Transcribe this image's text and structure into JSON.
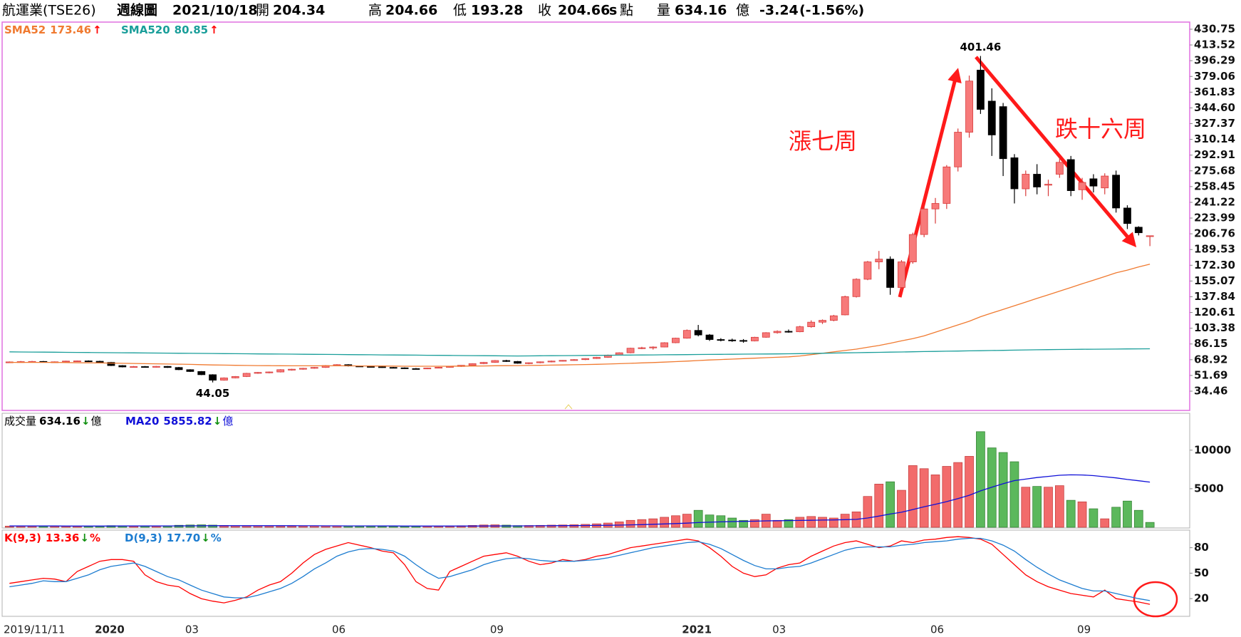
{
  "header": {
    "name": "航運業(TSE26)",
    "period": "週線圖",
    "date": "2021/10/18",
    "open_label": "開",
    "high_label": "高",
    "low_label": "低",
    "close_label": "收",
    "s": "s",
    "point": "點",
    "volume_label": "量",
    "volume_unit": "億",
    "change": "-3.24",
    "change_pct": "(-1.56%)"
  },
  "chart_data": [
    {
      "type": "candlestick",
      "up_color": "#f77a7a",
      "down_color": "#000000",
      "open": [
        66,
        66.5,
        66.8,
        67,
        66.2,
        66.6,
        67.4,
        67.6,
        67.2,
        66,
        62.5,
        61,
        61.4,
        61.2,
        61.6,
        60.4,
        58,
        56,
        52.5,
        46.5,
        49,
        50.5,
        54,
        55,
        55.5,
        58,
        58.5,
        59.5,
        60.5,
        62.5,
        63.5,
        62,
        61.5,
        61.2,
        60.5,
        60,
        59.2,
        59,
        59.8,
        60.6,
        61.5,
        62.8,
        64.6,
        66,
        68,
        67,
        65,
        65.6,
        66.6,
        67.4,
        68.2,
        69,
        70.2,
        71.5,
        74,
        76.5,
        81.5,
        82,
        82.8,
        87.5,
        92.5,
        101,
        96,
        91,
        90.5,
        90,
        89.5,
        93.5,
        98.5,
        100,
        99.5,
        105,
        110,
        112,
        118,
        138,
        157,
        176,
        179,
        148,
        176,
        206,
        234,
        240,
        280,
        318,
        386,
        352,
        346,
        290,
        256,
        272,
        260,
        272,
        288,
        255,
        267,
        257,
        271,
        235,
        214,
        204.34
      ],
      "high": [
        67,
        67.5,
        67.6,
        67.5,
        67,
        67.8,
        68,
        68.2,
        67.8,
        66.5,
        63,
        62,
        62,
        62,
        62,
        61,
        58.5,
        56.5,
        53,
        49.5,
        51,
        54.5,
        55.5,
        56,
        58.5,
        59,
        60,
        61,
        63,
        64,
        64,
        62.5,
        62,
        61.8,
        61,
        60.5,
        59.8,
        60.2,
        61,
        62,
        63,
        65,
        66.5,
        68.5,
        68.8,
        67.5,
        66,
        67,
        68,
        68.5,
        69.5,
        70.5,
        72,
        74.5,
        77,
        82,
        83,
        83.5,
        88,
        93,
        102,
        107,
        97,
        92.5,
        92,
        91.5,
        94,
        99,
        101,
        102,
        106,
        112,
        113,
        118,
        139,
        158,
        177,
        188,
        182,
        178,
        208,
        237,
        246,
        282,
        322,
        380,
        401.46,
        366,
        350,
        294,
        276,
        283,
        266,
        290,
        292,
        268,
        272,
        273,
        276,
        238,
        215,
        204.66
      ],
      "low": [
        65.5,
        65.8,
        66,
        66,
        65.8,
        66.2,
        66.9,
        67,
        65.5,
        62,
        60.5,
        60.2,
        60.6,
        60.4,
        60,
        57.5,
        55.5,
        52,
        44.05,
        46,
        48.5,
        50,
        53.5,
        54,
        55,
        57,
        58,
        59,
        60,
        62,
        61.5,
        61,
        60.5,
        60,
        59.5,
        58.8,
        58.5,
        58.6,
        59.5,
        60.2,
        61,
        62.5,
        64,
        65.5,
        66.5,
        64.5,
        64,
        65,
        66,
        67,
        67.8,
        68.5,
        69.8,
        71,
        73.5,
        76,
        80.5,
        80,
        82.5,
        87,
        92,
        94.5,
        89.5,
        89,
        88.5,
        87.5,
        89,
        93,
        97.5,
        98.5,
        99,
        104,
        108,
        111,
        117.5,
        137,
        156,
        168,
        140,
        144,
        174,
        203,
        218,
        234,
        275,
        312,
        338,
        292,
        270,
        240,
        248,
        250,
        248,
        268,
        248,
        244,
        252,
        250,
        230,
        212,
        205,
        193.28
      ],
      "close": [
        66.5,
        66.8,
        67,
        66.2,
        66.6,
        67.4,
        67.6,
        67.2,
        66,
        62.5,
        61,
        61.4,
        61.2,
        61.6,
        60.4,
        58,
        56,
        52.5,
        46.5,
        49,
        50.5,
        54,
        55,
        55.5,
        58,
        58.5,
        59.5,
        60.5,
        62.5,
        63.5,
        62,
        61.5,
        61.2,
        60.5,
        60,
        59.2,
        59,
        59.8,
        60.6,
        61.5,
        62.8,
        64.6,
        66,
        68,
        67,
        65,
        65.6,
        66.6,
        67.4,
        68.2,
        69,
        70.2,
        71.5,
        74,
        76.5,
        81.5,
        82,
        82.8,
        87.5,
        92.5,
        101,
        96,
        91,
        90.5,
        90,
        89.5,
        93.5,
        98.5,
        100,
        99.5,
        105,
        110,
        112,
        117,
        138,
        157,
        176,
        179,
        148,
        176,
        206,
        234,
        240,
        280,
        318,
        374,
        343,
        315,
        289,
        256,
        272,
        258,
        261,
        285,
        254,
        263,
        259,
        270,
        235,
        218,
        207.9,
        204.66
      ],
      "ylim": [
        13.4,
        438.55
      ],
      "yticks": [
        430.75,
        413.52,
        396.29,
        379.06,
        361.83,
        {
          "value": 344.6,
          "label": "344.60"
        },
        327.37,
        310.14,
        292.91,
        275.68,
        258.45,
        241.22,
        223.99,
        206.76,
        189.53,
        {
          "value": 172.3,
          "label": "172.30"
        },
        155.07,
        137.84,
        120.61,
        103.38,
        86.15,
        68.92,
        51.69,
        34.46
      ],
      "series": [
        {
          "name": "SMA52",
          "color": "#f07a30",
          "arrow": "↑",
          "values": [
            66,
            66,
            66,
            66,
            66,
            65.8,
            65.6,
            65.5,
            65.4,
            65.2,
            65,
            64.8,
            64.6,
            64.4,
            64.2,
            64,
            63.8,
            63.5,
            63.2,
            63,
            62.8,
            62.6,
            62.5,
            62.4,
            62.3,
            62.2,
            62.2,
            62.2,
            62.2,
            62.2,
            62.2,
            62.1,
            62,
            62,
            61.9,
            61.8,
            61.8,
            61.8,
            61.8,
            61.8,
            61.9,
            62,
            62.1,
            62.3,
            62.4,
            62.5,
            62.6,
            62.8,
            63,
            63.2,
            63.4,
            63.6,
            63.9,
            64.2,
            64.6,
            65,
            65.4,
            65.8,
            66.3,
            66.8,
            67.4,
            68,
            68.6,
            69.1,
            69.6,
            70.1,
            70.6,
            71.1,
            71.6,
            72.1,
            73,
            74.5,
            76,
            77.5,
            79,
            80.5,
            82.5,
            84.5,
            87,
            89.5,
            92,
            95,
            99,
            103,
            107,
            111,
            116,
            120,
            124,
            128,
            132,
            136,
            140,
            144,
            148,
            152,
            156,
            160,
            164,
            167,
            170.5,
            173.46
          ]
        },
        {
          "name": "SMA520",
          "color": "#1a9e9a",
          "arrow": "↑",
          "values": [
            77.5,
            77.4,
            77.3,
            77.2,
            77.1,
            77,
            76.9,
            76.8,
            76.7,
            76.6,
            76.5,
            76.4,
            76.3,
            76.2,
            76.1,
            76,
            75.9,
            75.8,
            75.7,
            75.6,
            75.5,
            75.4,
            75.3,
            75.2,
            75.1,
            75,
            74.9,
            74.8,
            74.7,
            74.6,
            74.5,
            74.4,
            74.3,
            74.2,
            74.1,
            74,
            73.9,
            73.8,
            73.7,
            73.6,
            73.5,
            73.4,
            73.3,
            73.2,
            73.1,
            73,
            73.1,
            73.2,
            73.3,
            73.4,
            73.5,
            73.6,
            73.7,
            73.8,
            73.9,
            74,
            74.1,
            74.2,
            74.3,
            74.4,
            74.5,
            74.6,
            74.7,
            74.8,
            74.9,
            75,
            75.1,
            75.2,
            75.3,
            75.4,
            75.6,
            75.8,
            76,
            76.2,
            76.4,
            76.6,
            76.8,
            77,
            77.2,
            77.4,
            77.6,
            77.8,
            78,
            78.2,
            78.4,
            78.6,
            78.8,
            79,
            79.2,
            79.4,
            79.6,
            79.8,
            79.95,
            80.1,
            80.2,
            80.3,
            80.4,
            80.5,
            80.6,
            80.7,
            80.8,
            80.85
          ]
        }
      ],
      "annotations": [
        "漲七周",
        "跌十六周"
      ]
    },
    {
      "type": "bar",
      "name": "成交量",
      "arrow": "↓",
      "unit": "億",
      "up_color": "#f26b6b",
      "down_color": "#5cb85c",
      "values": [
        150,
        160,
        150,
        140,
        150,
        130,
        120,
        140,
        160,
        210,
        200,
        180,
        170,
        190,
        200,
        260,
        300,
        320,
        280,
        240,
        200,
        190,
        180,
        170,
        160,
        150,
        160,
        170,
        180,
        190,
        170,
        160,
        150,
        140,
        130,
        130,
        140,
        150,
        160,
        170,
        200,
        240,
        300,
        320,
        280,
        220,
        230,
        250,
        280,
        300,
        330,
        380,
        450,
        550,
        700,
        900,
        1000,
        1100,
        1300,
        1500,
        1700,
        2200,
        1600,
        1500,
        1200,
        900,
        1000,
        1700,
        900,
        1000,
        1300,
        1400,
        1300,
        1200,
        1700,
        2000,
        4000,
        5600,
        5900,
        4800,
        8000,
        7600,
        6800,
        7900,
        8400,
        9200,
        12400,
        10300,
        9700,
        8500,
        5200,
        5300,
        5200,
        5400,
        3500,
        3300,
        2400,
        1100,
        2600,
        3400,
        2200,
        634.16
      ],
      "ylim": [
        0,
        14600
      ],
      "yticks": [
        5000,
        10000
      ],
      "series": [
        {
          "name": "MA20",
          "color": "#1010d8",
          "arrow": "↓",
          "unit": "億",
          "values": [
            170,
            170,
            168,
            165,
            163,
            160,
            158,
            157,
            156,
            158,
            162,
            165,
            167,
            170,
            174,
            180,
            187,
            195,
            200,
            203,
            205,
            206,
            206,
            205,
            203,
            200,
            196,
            192,
            188,
            184,
            180,
            176,
            172,
            168,
            164,
            160,
            158,
            156,
            155,
            155,
            157,
            160,
            165,
            170,
            175,
            180,
            186,
            193,
            200,
            208,
            217,
            228,
            241,
            258,
            280,
            310,
            345,
            385,
            430,
            480,
            540,
            610,
            660,
            705,
            740,
            765,
            790,
            830,
            850,
            870,
            890,
            910,
            930,
            950,
            985,
            1030,
            1200,
            1450,
            1720,
            1950,
            2300,
            2650,
            2980,
            3330,
            3720,
            4150,
            4720,
            5200,
            5650,
            6050,
            6250,
            6450,
            6600,
            6750,
            6800,
            6780,
            6700,
            6550,
            6400,
            6200,
            6030,
            5855.82
          ]
        }
      ]
    },
    {
      "type": "line",
      "categories": [
        "2019/11/11",
        null,
        null,
        null,
        null,
        null,
        null,
        null,
        "2020",
        null,
        null,
        null,
        null,
        null,
        null,
        null,
        "03",
        null,
        null,
        null,
        null,
        null,
        null,
        null,
        null,
        null,
        null,
        null,
        null,
        "06",
        null,
        null,
        null,
        null,
        null,
        null,
        null,
        null,
        null,
        null,
        null,
        null,
        null,
        "09",
        null,
        null,
        null,
        null,
        null,
        null,
        null,
        null,
        null,
        null,
        null,
        null,
        null,
        null,
        null,
        null,
        "2021",
        null,
        null,
        null,
        null,
        null,
        null,
        null,
        "03",
        null,
        null,
        null,
        null,
        null,
        null,
        null,
        null,
        null,
        null,
        null,
        null,
        null,
        "06",
        null,
        null,
        null,
        null,
        null,
        null,
        null,
        null,
        null,
        null,
        null,
        null,
        "09",
        null,
        null,
        null,
        null,
        null,
        null
      ],
      "ylim": [
        0,
        99
      ],
      "yticks": [
        20,
        50,
        80
      ],
      "series": [
        {
          "name": "K(9,3)",
          "color": "#ff0000",
          "arrow": "↓",
          "unit": "%",
          "values": [
            38,
            40,
            42,
            44,
            43,
            40,
            52,
            58,
            64,
            66,
            66,
            64,
            48,
            40,
            36,
            34,
            26,
            20,
            17,
            15,
            18,
            22,
            30,
            36,
            40,
            50,
            62,
            72,
            78,
            82,
            86,
            83,
            80,
            76,
            74,
            60,
            40,
            32,
            30,
            52,
            58,
            64,
            70,
            72,
            74,
            70,
            64,
            60,
            62,
            66,
            64,
            66,
            70,
            72,
            76,
            80,
            82,
            84,
            86,
            88,
            90,
            88,
            80,
            70,
            58,
            50,
            46,
            48,
            56,
            60,
            62,
            70,
            76,
            82,
            86,
            88,
            84,
            80,
            82,
            88,
            86,
            89,
            90,
            92,
            93,
            92,
            90,
            84,
            72,
            60,
            48,
            40,
            34,
            30,
            26,
            24,
            22,
            30,
            20,
            18,
            16,
            13.36
          ]
        },
        {
          "name": "D(9,3)",
          "color": "#1c7cd0",
          "arrow": "↓",
          "unit": "%",
          "value_label": "17.70",
          "values": [
            34,
            36,
            38,
            41,
            40,
            40,
            44,
            48,
            54,
            58,
            60,
            62,
            58,
            52,
            46,
            42,
            36,
            30,
            26,
            22,
            21,
            21,
            24,
            28,
            32,
            38,
            46,
            55,
            62,
            70,
            75,
            78,
            79,
            78,
            76,
            70,
            60,
            51,
            44,
            46,
            50,
            54,
            60,
            64,
            67,
            68,
            67,
            65,
            64,
            64,
            64,
            65,
            66,
            68,
            71,
            74,
            77,
            80,
            82,
            84,
            86,
            87,
            84,
            79,
            72,
            65,
            59,
            55,
            55,
            57,
            58,
            62,
            67,
            72,
            77,
            80,
            81,
            81,
            81,
            83,
            84,
            86,
            87,
            88,
            90,
            91,
            91,
            88,
            83,
            76,
            66,
            57,
            49,
            42,
            37,
            32,
            29,
            29,
            26,
            23,
            20,
            17.7
          ]
        }
      ]
    }
  ]
}
